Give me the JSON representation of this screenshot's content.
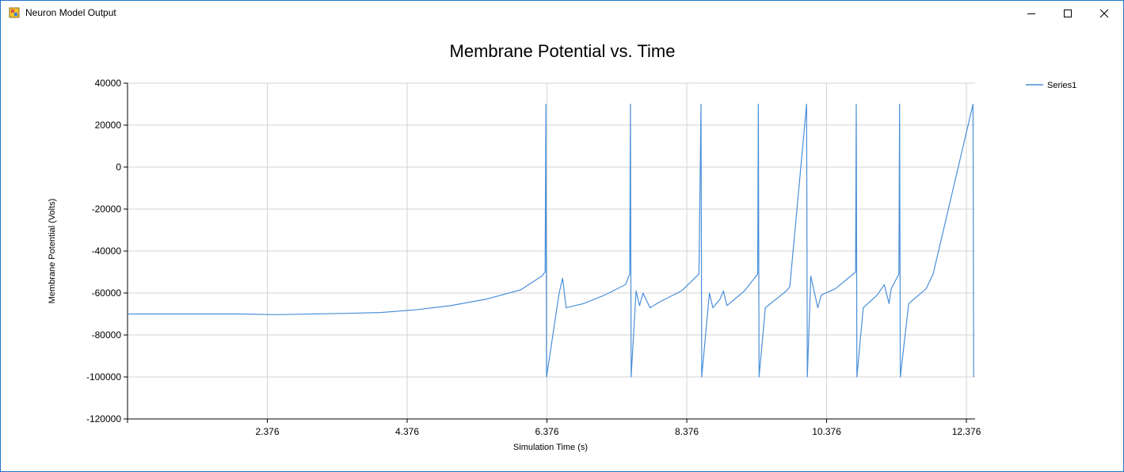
{
  "window": {
    "title": "Neuron Model Output",
    "icons": {
      "app": "app-icon",
      "minimize": "minimize-icon",
      "maximize": "maximize-icon",
      "close": "close-icon"
    }
  },
  "colors": {
    "series": "#4a8fd9",
    "grid": "#d3d3d3",
    "axis": "#000000",
    "window_border": "#1f74c9"
  },
  "chart_data": {
    "type": "line",
    "title": "Membrane Potential vs. Time",
    "xlabel": "Simulation Time (s)",
    "ylabel": "Membrane Potential (Volts)",
    "xlim": [
      0.376,
      12.5
    ],
    "ylim": [
      -120000,
      40000
    ],
    "xticks": [
      2.376,
      4.376,
      6.376,
      8.376,
      10.376,
      12.376
    ],
    "xtick_labels": [
      "2.376",
      "4.376",
      "6.376",
      "8.376",
      "10.376",
      "12.376"
    ],
    "yticks": [
      40000,
      20000,
      0,
      -20000,
      -40000,
      -60000,
      -80000,
      -100000,
      -120000
    ],
    "ytick_labels": [
      "40000",
      "20000",
      "0",
      "-20000",
      "-40000",
      "-60000",
      "-80000",
      "-100000",
      "-120000"
    ],
    "grid": true,
    "legend_position": "top-right",
    "series": [
      {
        "name": "Series1",
        "points": [
          [
            0.376,
            -70000
          ],
          [
            2.0,
            -70000
          ],
          [
            2.5,
            -70300
          ],
          [
            3.0,
            -70000
          ],
          [
            3.5,
            -69700
          ],
          [
            4.0,
            -69300
          ],
          [
            4.5,
            -68000
          ],
          [
            5.0,
            -66000
          ],
          [
            5.5,
            -63000
          ],
          [
            6.0,
            -58500
          ],
          [
            6.3,
            -52000
          ],
          [
            6.35,
            -50000
          ],
          [
            6.36,
            30000
          ],
          [
            6.37,
            -100000
          ],
          [
            6.55,
            -60000
          ],
          [
            6.6,
            -53000
          ],
          [
            6.65,
            -67000
          ],
          [
            6.9,
            -65000
          ],
          [
            7.2,
            -61000
          ],
          [
            7.5,
            -56000
          ],
          [
            7.56,
            -51000
          ],
          [
            7.57,
            30000
          ],
          [
            7.58,
            -100000
          ],
          [
            7.65,
            -59000
          ],
          [
            7.7,
            -66000
          ],
          [
            7.75,
            -60000
          ],
          [
            7.85,
            -67000
          ],
          [
            8.0,
            -64000
          ],
          [
            8.3,
            -59000
          ],
          [
            8.55,
            -51000
          ],
          [
            8.58,
            30000
          ],
          [
            8.59,
            -100000
          ],
          [
            8.7,
            -60000
          ],
          [
            8.75,
            -67000
          ],
          [
            8.85,
            -63000
          ],
          [
            8.9,
            -59000
          ],
          [
            8.95,
            -66000
          ],
          [
            9.2,
            -59000
          ],
          [
            9.39,
            -51000
          ],
          [
            9.4,
            30000
          ],
          [
            9.41,
            -100000
          ],
          [
            9.5,
            -67000
          ],
          [
            9.8,
            -59000
          ],
          [
            9.85,
            -57000
          ],
          [
            10.09,
            30000
          ],
          [
            10.1,
            -100000
          ],
          [
            10.15,
            -52000
          ],
          [
            10.25,
            -67000
          ],
          [
            10.3,
            -61000
          ],
          [
            10.5,
            -58000
          ],
          [
            10.79,
            -50000
          ],
          [
            10.8,
            30000
          ],
          [
            10.81,
            -100000
          ],
          [
            10.9,
            -67000
          ],
          [
            11.1,
            -61000
          ],
          [
            11.2,
            -56000
          ],
          [
            11.27,
            -65000
          ],
          [
            11.3,
            -58000
          ],
          [
            11.41,
            -51000
          ],
          [
            11.42,
            30000
          ],
          [
            11.43,
            -100000
          ],
          [
            11.55,
            -65000
          ],
          [
            11.8,
            -58000
          ],
          [
            11.9,
            -51000
          ],
          [
            12.47,
            30000
          ],
          [
            12.48,
            -100000
          ]
        ]
      }
    ]
  }
}
